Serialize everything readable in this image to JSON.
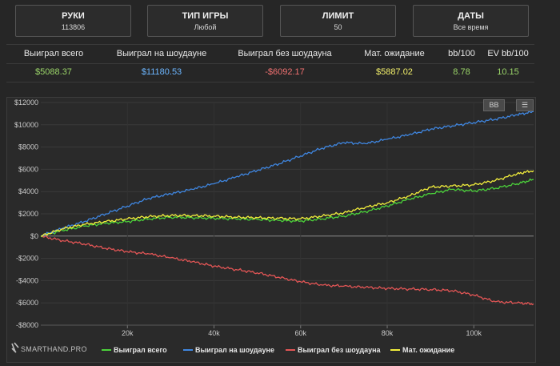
{
  "filters": [
    {
      "title": "РУКИ",
      "value": "113806",
      "active": true
    },
    {
      "title": "ТИП ИГРЫ",
      "value": "Любой",
      "active": false
    },
    {
      "title": "ЛИМИТ",
      "value": "50",
      "active": true
    },
    {
      "title": "ДАТЫ",
      "value": "Все время",
      "active": false
    }
  ],
  "stats": {
    "headers": [
      "Выиграл всего",
      "Выиграл на шоудауне",
      "Выиграл без шоудауна",
      "Мат. ожидание",
      "bb/100",
      "EV bb/100"
    ],
    "values": [
      "$5088.37",
      "$11180.53",
      "-$6092.17",
      "$5887.02",
      "8.78",
      "10.15"
    ]
  },
  "toolbar": {
    "bb_label": "BB",
    "menu_icon": "hamburger-menu-icon"
  },
  "brand": {
    "text": "SMARTHAND.PRO",
    "icon": "smarthand-logo-icon"
  },
  "colors": {
    "green": "#4bd13a",
    "blue": "#3f86e0",
    "red": "#e25555",
    "yellow": "#f2ee3c",
    "accent": "#c98a4a"
  },
  "chart_data": {
    "type": "line",
    "xlim": [
      0,
      113806
    ],
    "ylim": [
      -8000,
      12000
    ],
    "x_ticks": [
      20000,
      40000,
      60000,
      80000,
      100000
    ],
    "x_tick_labels": [
      "20k",
      "40k",
      "60k",
      "80k",
      "100k"
    ],
    "y_ticks": [
      -8000,
      -6000,
      -4000,
      -2000,
      0,
      2000,
      4000,
      6000,
      8000,
      10000,
      12000
    ],
    "y_tick_labels": [
      "-$8000",
      "-$6000",
      "-$4000",
      "-$2000",
      "$0",
      "$2000",
      "$4000",
      "$6000",
      "$8000",
      "$10000",
      "$12000"
    ],
    "grid": true,
    "legend_position": "bottom",
    "series": [
      {
        "name": "Выиграл всего",
        "color": "#4bd13a",
        "x": [
          0,
          5000,
          10000,
          15000,
          20000,
          25000,
          30000,
          35000,
          40000,
          45000,
          50000,
          55000,
          60000,
          65000,
          70000,
          75000,
          80000,
          85000,
          90000,
          95000,
          100000,
          105000,
          110000,
          113806
        ],
        "y": [
          0,
          500,
          900,
          1150,
          1300,
          1550,
          1700,
          1650,
          1600,
          1550,
          1500,
          1400,
          1350,
          1550,
          1800,
          2200,
          2700,
          3300,
          3800,
          4200,
          4050,
          4300,
          4700,
          5088
        ]
      },
      {
        "name": "Выиграл на шоудауне",
        "color": "#3f86e0",
        "x": [
          0,
          5000,
          10000,
          15000,
          20000,
          25000,
          30000,
          35000,
          40000,
          45000,
          50000,
          55000,
          60000,
          65000,
          70000,
          75000,
          80000,
          85000,
          90000,
          95000,
          100000,
          105000,
          110000,
          113806
        ],
        "y": [
          0,
          700,
          1300,
          2000,
          2700,
          3400,
          3800,
          4200,
          4700,
          5300,
          5900,
          6500,
          7200,
          7900,
          8400,
          8300,
          8700,
          9100,
          9600,
          9900,
          10200,
          10500,
          10900,
          11180
        ]
      },
      {
        "name": "Выиграл без шоудауна",
        "color": "#e25555",
        "x": [
          0,
          5000,
          10000,
          15000,
          20000,
          25000,
          30000,
          35000,
          40000,
          45000,
          50000,
          55000,
          60000,
          65000,
          70000,
          75000,
          80000,
          85000,
          90000,
          95000,
          100000,
          105000,
          110000,
          113806
        ],
        "y": [
          0,
          -400,
          -700,
          -1100,
          -1400,
          -1600,
          -1950,
          -2300,
          -2700,
          -3000,
          -3300,
          -3700,
          -4100,
          -4400,
          -4500,
          -4600,
          -4700,
          -4750,
          -4800,
          -4900,
          -5300,
          -5900,
          -6000,
          -6092
        ]
      },
      {
        "name": "Мат. ожидание",
        "color": "#f2ee3c",
        "x": [
          0,
          5000,
          10000,
          15000,
          20000,
          25000,
          30000,
          35000,
          40000,
          45000,
          50000,
          55000,
          60000,
          65000,
          70000,
          75000,
          80000,
          85000,
          90000,
          95000,
          100000,
          105000,
          110000,
          113806
        ],
        "y": [
          0,
          650,
          1050,
          1300,
          1550,
          1750,
          1850,
          1850,
          1800,
          1700,
          1650,
          1600,
          1550,
          1800,
          2100,
          2600,
          3000,
          3600,
          4400,
          4500,
          4600,
          5000,
          5600,
          5887
        ]
      }
    ]
  }
}
